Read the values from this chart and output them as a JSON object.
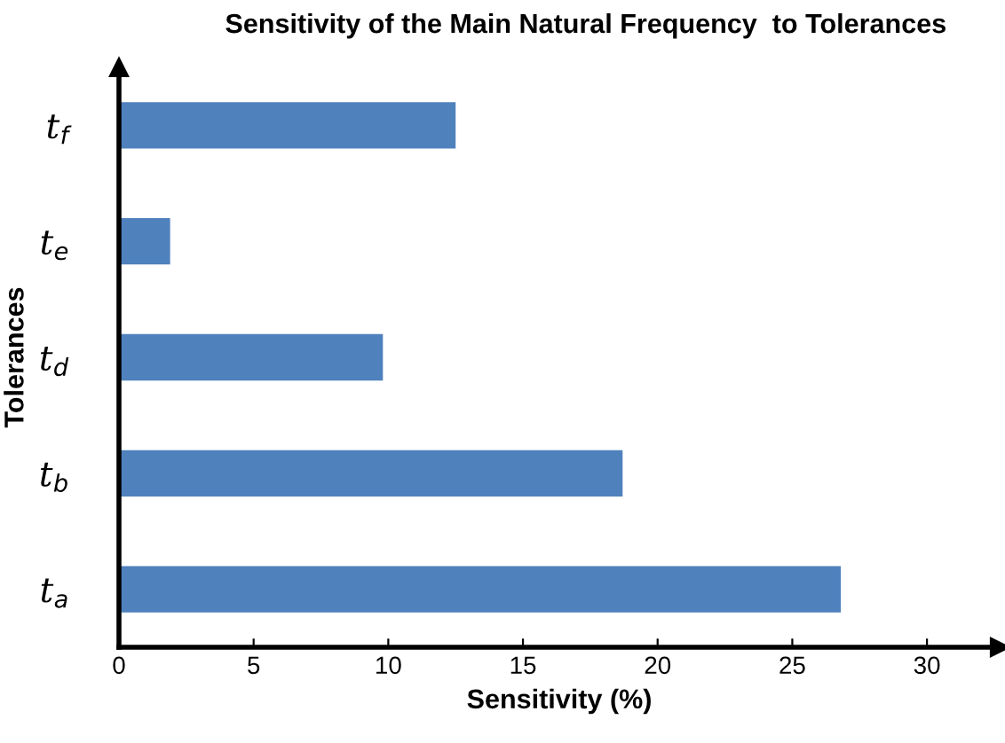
{
  "chart_data": {
    "type": "bar",
    "orientation": "horizontal",
    "title": "Sensitivity of the Main Natural Frequency  to Tolerances",
    "xlabel": "Sensitivity (%)",
    "ylabel": "Tolerances",
    "categories": [
      "t$_{f}$",
      "t$_{e}$",
      "t$_{d}$",
      "t$_{b}$",
      "t$_{a}$"
    ],
    "values": [
      12.5,
      1.9,
      9.8,
      18.7,
      26.8
    ],
    "color": "#4f81bd",
    "xlim": [
      0,
      32.7
    ],
    "xticks": [
      0,
      5,
      10,
      15,
      20,
      25,
      30
    ],
    "grid": false,
    "legend": false
  }
}
